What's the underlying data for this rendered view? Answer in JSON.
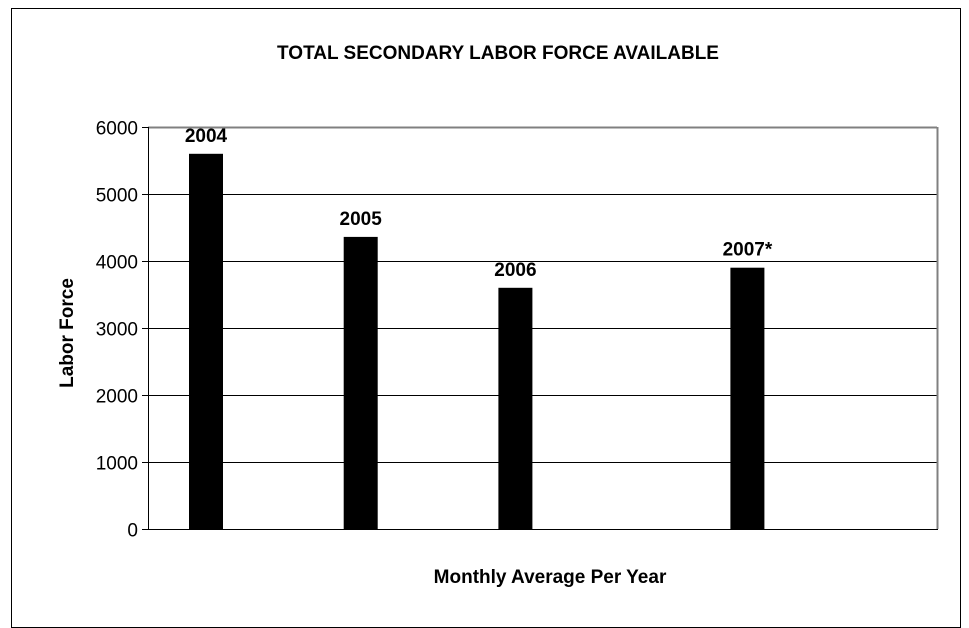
{
  "chart_data": {
    "type": "bar",
    "title": "TOTAL SECONDARY LABOR FORCE AVAILABLE",
    "xlabel": "Monthly Average Per Year",
    "ylabel": "Labor Force",
    "categories": [
      "2004",
      "2005",
      "2006",
      "2007*"
    ],
    "category_slots": [
      0,
      1,
      2,
      3.5
    ],
    "values": [
      5600,
      4360,
      3600,
      3900
    ],
    "data_labels": [
      "2004",
      "2005",
      "2006",
      "2007*"
    ],
    "ylim": [
      0,
      6000
    ],
    "yticks": [
      0,
      1000,
      2000,
      3000,
      4000,
      5000,
      6000
    ],
    "grid": true,
    "legend": "none",
    "colors": {
      "bar": "#000000",
      "grid": "#000000",
      "plot_border": "#808080",
      "background": "#ffffff"
    }
  }
}
